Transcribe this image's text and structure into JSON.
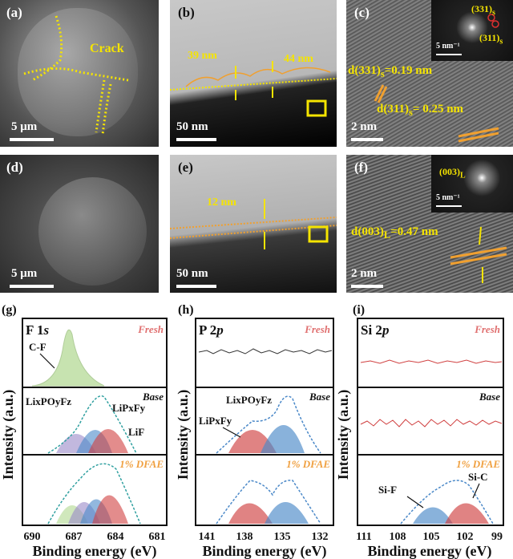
{
  "figure": {
    "row1": {
      "a": {
        "label": "(a)",
        "scale": "5 μm",
        "annotation": "Crack"
      },
      "b": {
        "label": "(b)",
        "scale": "50 nm",
        "thick_left": "39 nm",
        "thick_right": "44 nm"
      },
      "c": {
        "label": "(c)",
        "scale": "2 nm",
        "fft_scale": "5 nm⁻¹",
        "fft_spot1": "(331)",
        "fft_spot2": "(311)",
        "fft_sub": "s",
        "d1": "d(331)",
        "d1_sub": "s",
        "d1_val": "=0.19 nm",
        "d2": "d(311)",
        "d2_sub": "s",
        "d2_val": "= 0.25 nm"
      }
    },
    "row2": {
      "d": {
        "label": "(d)",
        "scale": "5 μm"
      },
      "e": {
        "label": "(e)",
        "scale": "50 nm",
        "thick": "12 nm"
      },
      "f": {
        "label": "(f)",
        "scale": "2 nm",
        "fft_scale": "5 nm⁻¹",
        "fft_spot": "(003)",
        "fft_sub": "L",
        "d": "d(003)",
        "d_sub": "L",
        "d_val": "=0.47 nm"
      }
    },
    "xps": {
      "y_label": "Intensity (a.u.)",
      "g": {
        "label": "(g)",
        "element": "F 1",
        "orbital": "s",
        "fresh": "Fresh",
        "base": "Base",
        "dfae": "1% DFAE",
        "peak_cf": "C-F",
        "peak_lipof": "LixPOyFz",
        "peak_lipf": "LiPxFy",
        "peak_lif": "LiF",
        "xlabel": "Binding energy (eV)",
        "ticks": [
          "690",
          "687",
          "684",
          "681"
        ]
      },
      "h": {
        "label": "(h)",
        "element": "P 2",
        "orbital": "p",
        "fresh": "Fresh",
        "base": "Base",
        "dfae": "1% DFAE",
        "peak_lipof": "LixPOyFz",
        "peak_lipf": "LiPxFy",
        "xlabel": "Binding energy (eV)",
        "ticks": [
          "141",
          "138",
          "135",
          "132"
        ]
      },
      "i": {
        "label": "(i)",
        "element": "Si 2",
        "orbital": "p",
        "fresh": "Fresh",
        "base": "Base",
        "dfae": "1% DFAE",
        "peak_sif": "Si-F",
        "peak_sic": "Si-C",
        "xlabel": "Binding energy (eV)",
        "ticks": [
          "111",
          "108",
          "105",
          "102",
          "99"
        ]
      }
    },
    "colors": {
      "yellow": "#f5e400",
      "orange": "#f0a030",
      "fresh_red": "#e07070",
      "dfae_orange": "#f0a040",
      "blue": "#4a88c8",
      "red": "#d04040",
      "green": "#b0d890",
      "purple": "#9a88c8"
    }
  }
}
